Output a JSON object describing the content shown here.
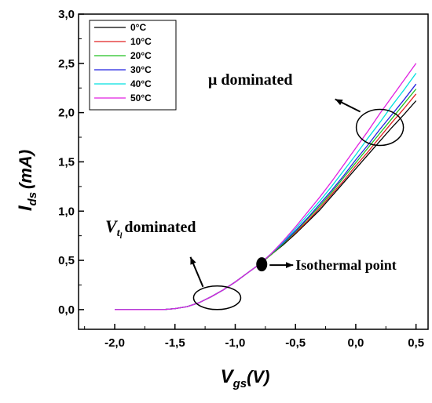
{
  "chart_data": {
    "type": "line",
    "title": "",
    "xlabel": {
      "main": "V",
      "sub": "gs",
      "unit": "(V)"
    },
    "ylabel": {
      "main": "I",
      "sub": "ds",
      "unit": "(mA)"
    },
    "xlim": [
      -2.3,
      0.6
    ],
    "ylim": [
      -0.2,
      3.0
    ],
    "x_ticks": [
      -2.0,
      -1.5,
      -1.0,
      -0.5,
      0.0,
      0.5
    ],
    "x_tick_labels": [
      "-2,0",
      "-1,5",
      "-1,0",
      "-0,5",
      "0,0",
      "0,5"
    ],
    "y_ticks": [
      0.0,
      0.5,
      1.0,
      1.5,
      2.0,
      2.5,
      3.0
    ],
    "y_tick_labels": [
      "0,0",
      "0,5",
      "1,0",
      "1,5",
      "2,0",
      "2,5",
      "3,0"
    ],
    "grid": false,
    "legend_position": "top-left",
    "x": [
      -2.0,
      -1.8,
      -1.6,
      -1.5,
      -1.4,
      -1.3,
      -1.2,
      -1.1,
      -1.0,
      -0.9,
      -0.8,
      -0.7,
      -0.6,
      -0.5,
      -0.4,
      -0.3,
      -0.2,
      -0.1,
      0.0,
      0.1,
      0.2,
      0.3,
      0.4,
      0.5
    ],
    "series": [
      {
        "name": "0°C",
        "color": "#000000",
        "values": [
          0.0,
          0.0,
          0.0,
          0.01,
          0.03,
          0.07,
          0.13,
          0.2,
          0.28,
          0.37,
          0.46,
          0.56,
          0.66,
          0.77,
          0.89,
          1.01,
          1.15,
          1.29,
          1.43,
          1.57,
          1.71,
          1.85,
          1.98,
          2.12
        ]
      },
      {
        "name": "10°C",
        "color": "#e02020",
        "values": [
          0.0,
          0.0,
          0.0,
          0.01,
          0.03,
          0.07,
          0.13,
          0.2,
          0.28,
          0.37,
          0.46,
          0.56,
          0.67,
          0.78,
          0.9,
          1.03,
          1.17,
          1.31,
          1.46,
          1.6,
          1.75,
          1.9,
          2.04,
          2.19
        ]
      },
      {
        "name": "20°C",
        "color": "#20c020",
        "values": [
          0.0,
          0.0,
          0.0,
          0.01,
          0.03,
          0.07,
          0.13,
          0.2,
          0.28,
          0.37,
          0.46,
          0.56,
          0.67,
          0.79,
          0.92,
          1.05,
          1.19,
          1.34,
          1.49,
          1.64,
          1.79,
          1.94,
          2.09,
          2.24
        ]
      },
      {
        "name": "30°C",
        "color": "#2020e0",
        "values": [
          0.0,
          0.0,
          0.0,
          0.01,
          0.03,
          0.07,
          0.13,
          0.2,
          0.28,
          0.37,
          0.46,
          0.57,
          0.68,
          0.8,
          0.93,
          1.07,
          1.21,
          1.36,
          1.52,
          1.67,
          1.83,
          1.98,
          2.13,
          2.29
        ]
      },
      {
        "name": "40°C",
        "color": "#00e0e0",
        "values": [
          0.0,
          0.0,
          0.0,
          0.01,
          0.03,
          0.07,
          0.13,
          0.2,
          0.28,
          0.37,
          0.46,
          0.57,
          0.69,
          0.82,
          0.96,
          1.1,
          1.25,
          1.41,
          1.57,
          1.74,
          1.9,
          2.07,
          2.23,
          2.4
        ]
      },
      {
        "name": "50°C",
        "color": "#e020e0",
        "values": [
          0.0,
          0.0,
          0.0,
          0.01,
          0.03,
          0.07,
          0.13,
          0.2,
          0.28,
          0.37,
          0.46,
          0.57,
          0.7,
          0.84,
          0.99,
          1.14,
          1.3,
          1.47,
          1.64,
          1.81,
          1.99,
          2.16,
          2.33,
          2.5
        ]
      }
    ],
    "annotations": {
      "mu": {
        "label": "μ dominated",
        "target": [
          0.2,
          1.85
        ]
      },
      "vt": {
        "label_main": "V",
        "label_sub": "t",
        "label_subsub": "l",
        "label_rest": "dominated",
        "target": [
          -1.15,
          0.12
        ]
      },
      "iso": {
        "label": "Isothermal point",
        "point": [
          -0.78,
          0.46
        ]
      }
    }
  }
}
